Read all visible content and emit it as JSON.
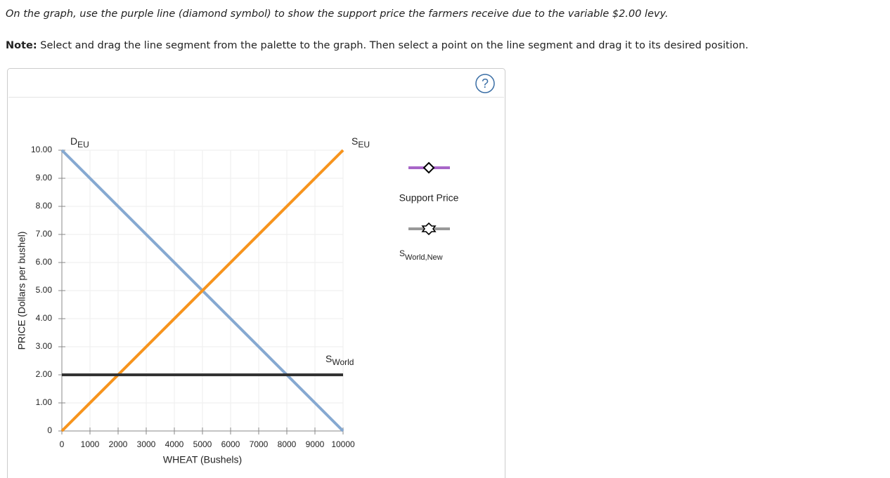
{
  "instructions": {
    "prompt": "On the graph, use the purple line (diamond symbol) to show the support price the farmers receive due to the variable $2.00 levy.",
    "note_label": "Note:",
    "note": "Select and drag the line segment from the palette to the graph. Then select a point on the line segment and drag it to its desired position."
  },
  "help": "?",
  "chart_data": {
    "type": "line",
    "x_label": "WHEAT (Bushels)",
    "y_label": "PRICE (Dollars per bushel)",
    "xlim": [
      0,
      10000
    ],
    "ylim": [
      0,
      10
    ],
    "xticks": [
      0,
      1000,
      2000,
      3000,
      4000,
      5000,
      6000,
      7000,
      8000,
      9000,
      10000
    ],
    "yticks": [
      0,
      {
        "value": 1,
        "label": "1.00"
      },
      {
        "value": 2,
        "label": "2.00"
      },
      {
        "value": 3,
        "label": "3.00"
      },
      {
        "value": 4,
        "label": "4.00"
      },
      {
        "value": 5,
        "label": "5.00"
      },
      {
        "value": 6,
        "label": "6.00"
      },
      {
        "value": 7,
        "label": "7.00"
      },
      {
        "value": 8,
        "label": "8.00"
      },
      {
        "value": 9,
        "label": "9.00"
      },
      {
        "value": 10,
        "label": "10.00"
      }
    ],
    "grid": true,
    "series": [
      {
        "name": "D",
        "subscript": "EU",
        "color": "#86a9d1",
        "x": [
          0,
          10000
        ],
        "values": [
          10,
          0
        ]
      },
      {
        "name": "S",
        "subscript": "EU",
        "color": "#f7941d",
        "x": [
          0,
          10000
        ],
        "values": [
          0,
          10
        ]
      },
      {
        "name": "S",
        "subscript": "World",
        "color": "#333333",
        "x": [
          0,
          10000
        ],
        "values": [
          2,
          2
        ]
      }
    ],
    "palette": [
      {
        "label": "Support Price",
        "color": "#a866c8",
        "symbol": "diamond"
      },
      {
        "label": "S",
        "subscript": "World,New",
        "color": "#999999",
        "symbol": "star"
      }
    ]
  }
}
